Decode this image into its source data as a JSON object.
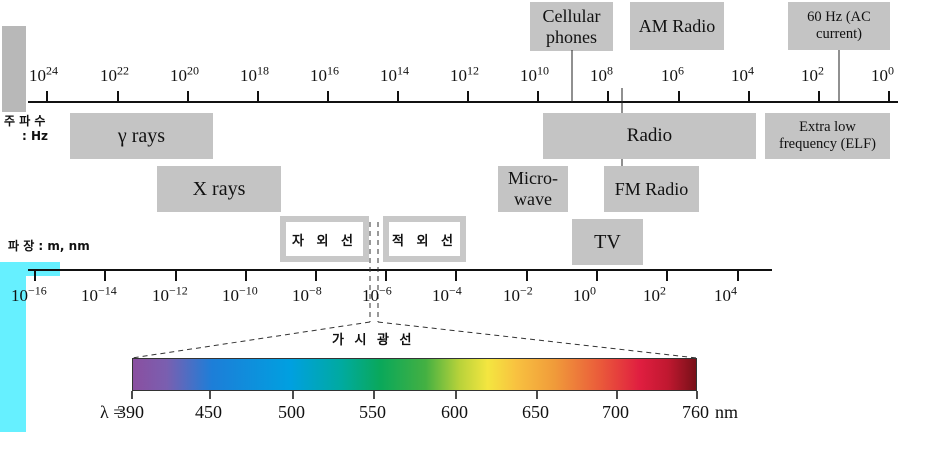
{
  "frequency_axis": {
    "label_line1": "주 파 수",
    "label_line2": ": Hz",
    "ticks": [
      "10",
      "10",
      "10",
      "10",
      "10",
      "10",
      "10",
      "10",
      "10",
      "10",
      "10",
      "10",
      "10"
    ],
    "exponents": [
      "24",
      "22",
      "20",
      "18",
      "16",
      "14",
      "12",
      "10",
      "8",
      "6",
      "4",
      "2",
      "0"
    ]
  },
  "wavelength_axis": {
    "label": "파 장 : m, nm",
    "ticks": [
      "10",
      "10",
      "10",
      "10",
      "10",
      "10",
      "10",
      "10",
      "10",
      "10",
      "10"
    ],
    "exponents": [
      "−16",
      "−14",
      "−12",
      "−10",
      "−8",
      "−6",
      "−4",
      "−2",
      "0",
      "2",
      "4"
    ]
  },
  "bands": {
    "cellular": "Cellular phones",
    "am_radio": "AM Radio",
    "ac_current": "60 Hz (AC current)",
    "gamma": "γ rays",
    "radio": "Radio",
    "elf": "Extra low frequency (ELF)",
    "xrays": "X rays",
    "microwave": "Micro- wave",
    "fm_radio": "FM Radio",
    "tv": "TV",
    "uv": "자 외 선",
    "ir": "적 외 선"
  },
  "visible": {
    "title": "가 시 광 선",
    "lambda_prefix": "λ =",
    "ticks": [
      "390",
      "450",
      "500",
      "550",
      "600",
      "650",
      "700",
      "760"
    ],
    "unit": "nm"
  },
  "colors": {
    "box_gray": "#c4c4c4",
    "cyan_strip": "#66f0ff"
  }
}
